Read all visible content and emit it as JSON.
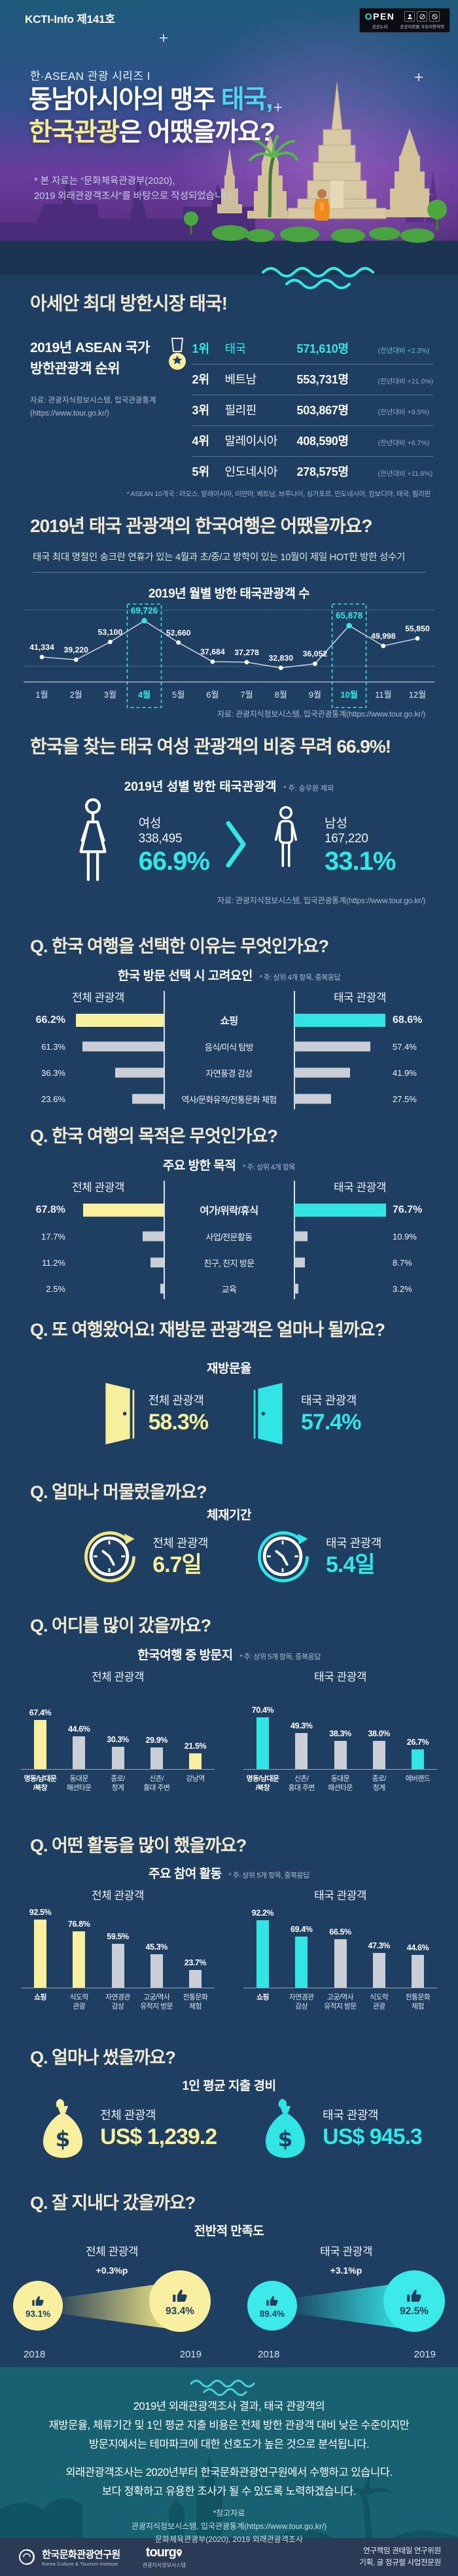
{
  "meta": {
    "issue": "KCTI-Info 제141호"
  },
  "open": {
    "word": "OPEN",
    "left_label": "공공누리",
    "right_label": "공공저작물 자유이용허락"
  },
  "header": {
    "series": "한·ASEAN 관광 시리즈 I",
    "title1_a": "동남아시아의 맹주 ",
    "title1_b": "태국,",
    "title2_a": "한국관광",
    "title2_b": "은 어땠을까요?",
    "footnote1": "* 본 자료는 “문화체육관광부(2020),",
    "footnote2": "2019 외래관광객조사”를 바탕으로 작성되었습니다."
  },
  "sections": {
    "asean": {
      "heading": "아세안 최대 방한시장 태국!",
      "panel_line1": "2019년 ASEAN 국가",
      "panel_line2": "방한관광객 순위",
      "source_line1": "자료: 관광지식정보시스템, 입국관광통계",
      "source_line2": "(https://www.tour.go.kr/)",
      "note": "* ASEAN 10개국 : 라오스, 말레이시아, 미얀마, 베트남, 브루나이, 싱가포르, 인도네시아, 캄보디아, 태국, 필리핀"
    },
    "monthly": {
      "heading": "2019년 태국 관광객의 한국여행은 어땠을까요?",
      "subtitle": "태국 최대 명절인 송크란 연휴가 있는 4월과 초/중/고 방학이 있는 10월이 제일 HOT한 방한 성수기",
      "source": "자료: 관광지식정보시스템, 입국관광통계(https://www.tour.go.kr/)"
    },
    "gender": {
      "heading": "한국을 찾는 태국 여성 관광객의 비중 무려 66.9%!",
      "source": "자료: 관광지식정보시스템, 입국관광통계(https://www.tour.go.kr/)"
    },
    "q1": {
      "heading": "Q. 한국 여행을 선택한 이유는 무엇인가요?"
    },
    "q2": {
      "heading": "Q. 한국 여행의 목적은 무엇인가요?"
    },
    "q3": {
      "heading": "Q. 또 여행왔어요! 재방문 관광객은 얼마나 될까요?"
    },
    "q4": {
      "heading": "Q. 얼마나 머물렀을까요?"
    },
    "q5": {
      "heading": "Q. 어디를 많이 갔을까요?"
    },
    "q6": {
      "heading": "Q. 어떤 활동을 많이 했을까요?"
    },
    "q7": {
      "heading": "Q. 얼마나 썼을까요?"
    },
    "q8": {
      "heading": "Q. 잘 지내다 갔을까요?"
    }
  },
  "chart_data": [
    {
      "type": "table",
      "title": "2019년 ASEAN 국가 방한관광객 순위",
      "columns": [
        "순위",
        "국가",
        "방한관광객 수",
        "전년대비"
      ],
      "rows": [
        [
          "1위",
          "태국",
          "571,610명",
          "(전년대비 +2.3%)"
        ],
        [
          "2위",
          "베트남",
          "553,731명",
          "(전년대비 +21.0%)"
        ],
        [
          "3위",
          "필리핀",
          "503,867명",
          "(전년대비 +9.5%)"
        ],
        [
          "4위",
          "말레이시아",
          "408,590명",
          "(전년대비 +6.7%)"
        ],
        [
          "5위",
          "인도네시아",
          "278,575명",
          "(전년대비 +11.8%)"
        ]
      ]
    },
    {
      "type": "line",
      "title": "2019년 월별 방한 태국관광객 수",
      "x": [
        "1월",
        "2월",
        "3월",
        "4월",
        "5월",
        "6월",
        "7월",
        "8월",
        "9월",
        "10월",
        "11월",
        "12월"
      ],
      "values": [
        41334,
        39220,
        53100,
        69726,
        52660,
        37684,
        37278,
        32830,
        36052,
        65878,
        49998,
        55850
      ],
      "labels": [
        "41,334",
        "39,220",
        "53,100",
        "69,726",
        "52,660",
        "37,684",
        "37,278",
        "32,830",
        "36,052",
        "65,878",
        "49,998",
        "55,850"
      ],
      "highlight_indices": [
        3,
        9
      ],
      "ylim": [
        30000,
        72000
      ],
      "grid": true
    },
    {
      "type": "bar",
      "title": "2019년 성별 방한 태국관광객",
      "note": "* 주: 승무원 제외",
      "categories": [
        "여성",
        "남성"
      ],
      "counts": [
        "338,495",
        "167,220"
      ],
      "values": [
        66.9,
        33.1
      ],
      "pcts": [
        "66.9%",
        "33.1%"
      ]
    },
    {
      "type": "bar",
      "title": "한국 방문 선택 시 고려요인",
      "note": "* 주: 상위 4개 항목, 중복응답",
      "categories": [
        "쇼핑",
        "음식/미식 탐방",
        "자연풍경 감상",
        "역사/문화유적/전통문화 체험"
      ],
      "series": [
        {
          "name": "전체 관광객",
          "values": [
            66.2,
            61.3,
            36.3,
            23.6
          ]
        },
        {
          "name": "태국 관광객",
          "values": [
            68.6,
            57.4,
            41.9,
            27.5
          ]
        }
      ],
      "max": 70
    },
    {
      "type": "bar",
      "title": "주요 방한 목적",
      "note": "* 주: 상위 4개 항목",
      "categories": [
        "여가/위락/휴식",
        "사업/전문활동",
        "친구, 친지 방문",
        "교육"
      ],
      "series": [
        {
          "name": "전체 관광객",
          "values": [
            67.8,
            17.7,
            11.2,
            2.5
          ]
        },
        {
          "name": "태국 관광객",
          "values": [
            76.7,
            10.9,
            8.7,
            3.2
          ]
        }
      ],
      "max": 78
    },
    {
      "type": "bar",
      "title": "재방문율",
      "categories": [
        "전체 관광객",
        "태국 관광객"
      ],
      "values": [
        58.3,
        57.4
      ],
      "display": [
        "58.3%",
        "57.4%"
      ]
    },
    {
      "type": "bar",
      "title": "체재기간",
      "categories": [
        "전체 관광객",
        "태국 관광객"
      ],
      "values": [
        6.7,
        5.4
      ],
      "unit": "일",
      "display": [
        "6.7일",
        "5.4일"
      ]
    },
    {
      "type": "bar",
      "title": "한국여행 중 방문지",
      "note": "* 주: 상위 5개 항목, 중복응답",
      "groups": [
        {
          "name": "전체 관광객",
          "labels": [
            [
              "명동/남대문",
              "/북창"
            ],
            [
              "동대문",
              "패션타운"
            ],
            [
              "종로/",
              "청계"
            ],
            [
              "신촌/",
              "홍대 주변"
            ],
            [
              "강남역"
            ]
          ],
          "values": [
            67.4,
            44.6,
            30.3,
            29.9,
            21.5
          ],
          "colored": [
            0,
            4
          ]
        },
        {
          "name": "태국 관광객",
          "labels": [
            [
              "명동/남대문",
              "/북창"
            ],
            [
              "신촌/",
              "홍대 주변"
            ],
            [
              "동대문",
              "패션타운"
            ],
            [
              "종로/",
              "청계"
            ],
            [
              "에버랜드"
            ]
          ],
          "values": [
            70.4,
            49.3,
            38.3,
            38.0,
            26.7
          ],
          "colored": [
            0,
            4
          ]
        }
      ]
    },
    {
      "type": "bar",
      "title": "주요 참여 활동",
      "note": "* 주: 상위 5개 항목, 중복응답",
      "groups": [
        {
          "name": "전체 관광객",
          "labels": [
            [
              "쇼핑"
            ],
            [
              "식도락",
              "관광"
            ],
            [
              "자연경관",
              "감상"
            ],
            [
              "고궁/역사",
              "유적지 방문"
            ],
            [
              "전통문화",
              "체험"
            ]
          ],
          "values": [
            92.5,
            76.8,
            59.5,
            45.3,
            23.7
          ],
          "colored": [
            0,
            1
          ]
        },
        {
          "name": "태국 관광객",
          "labels": [
            [
              "쇼핑"
            ],
            [
              "자연경관",
              "감상"
            ],
            [
              "고궁/역사",
              "유적지 방문"
            ],
            [
              "식도락",
              "관광"
            ],
            [
              "전통문화",
              "체험"
            ]
          ],
          "values": [
            92.2,
            69.4,
            66.5,
            47.3,
            44.6
          ],
          "colored": [
            0,
            1
          ]
        }
      ]
    },
    {
      "type": "bar",
      "title": "1인 평균 지출 경비",
      "categories": [
        "전체 관광객",
        "태국 관광객"
      ],
      "values": [
        "US$ 1,239.2",
        "US$ 945.3"
      ]
    },
    {
      "type": "bar",
      "title": "전반적 만족도",
      "groups": [
        {
          "name": "전체 관광객",
          "years": [
            "2018",
            "2019"
          ],
          "values": [
            "93.1%",
            "93.4%"
          ],
          "delta": "+0.3%p"
        },
        {
          "name": "태국 관광객",
          "years": [
            "2018",
            "2019"
          ],
          "values": [
            "89.4%",
            "92.5%"
          ],
          "delta": "+3.1%p"
        }
      ]
    }
  ],
  "summary": {
    "l1": "2019년 외래관광객조사 결과, 태국 관광객의",
    "l2": "재방문율, 체류기간 및 1인 평균 지출 비용은 전체 방한 관광객 대비 낮은 수준이지만",
    "l3": "방문지에서는 테마파크에 대한 선호도가 높은 것으로 분석됩니다.",
    "l4": "외래관광객조사는 2020년부터 한국문화관광연구원에서 수행하고 있습니다.",
    "l5": "보다 정확하고 유용한 조사가 될 수 있도록 노력하겠습니다.",
    "ref_title": "*참고자료",
    "ref1": "관광지식정보시스템, 입국관광통계(https://www.tour.go.kr/)",
    "ref2": "문화체육관광부(2020), 2019 외래관광객조사"
  },
  "footer": {
    "org_kr": "한국문화관광연구원",
    "org_en": "Korea Culture & Tourism Institute",
    "tour_logo": "tourg",
    "tour_sub": "관광지식정보시스템",
    "credit1": "연구책임 권태일 연구위원",
    "credit2": "기획, 글 정규렬 사업전문원"
  },
  "colors": {
    "background": "#1e3e62",
    "accent_cyan": "#35e6e6",
    "accent_yellow": "#f7ef9d",
    "bar_gray": "#c9ced7",
    "heading_cream": "#f2ead2",
    "teal_band": "#176170",
    "footer_bar": "#2b3a55"
  }
}
